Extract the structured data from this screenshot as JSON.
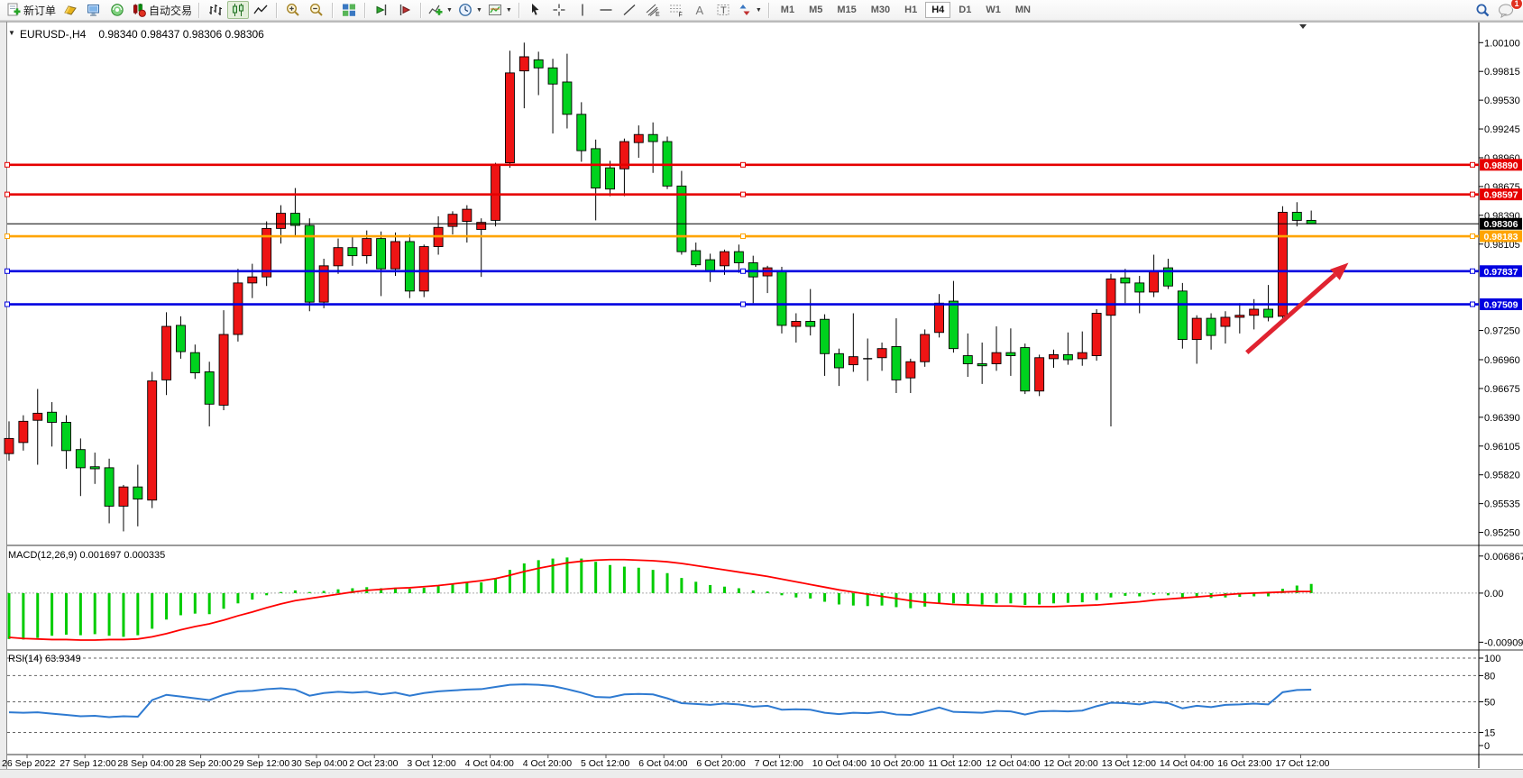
{
  "toolbar": {
    "new_order_label": "新订单",
    "auto_trading_label": "自动交易",
    "timeframes": [
      "M1",
      "M5",
      "M15",
      "M30",
      "H1",
      "H4",
      "D1",
      "W1",
      "MN"
    ],
    "active_timeframe": "H4",
    "notification_count": "1"
  },
  "chart_data": [
    {
      "type": "candlestick",
      "title_symbol": "EURUSD-,H4",
      "title_values": "0.98340 0.98437 0.98306 0.98306",
      "up_color": "#ee1414",
      "down_color": "#00d21e",
      "ylim": [
        0.9513,
        1.0029
      ],
      "y_ticks": [
        "1.00100",
        "0.99815",
        "0.99530",
        "0.99245",
        "0.98960",
        "0.98675",
        "0.98390",
        "0.98105",
        "0.97250",
        "0.96960",
        "0.96675",
        "0.96390",
        "0.96105",
        "0.95820",
        "0.95535",
        "0.95250"
      ],
      "h_lines": [
        {
          "price": 0.9889,
          "label": "0.98890",
          "color": "#e60000"
        },
        {
          "price": 0.98597,
          "label": "0.98597",
          "color": "#e60000"
        },
        {
          "price": 0.98183,
          "label": "0.98183",
          "color": "#ffa400"
        },
        {
          "price": 0.97837,
          "label": "0.97837",
          "color": "#0000e0"
        },
        {
          "price": 0.97509,
          "label": "0.97509",
          "color": "#0000e0"
        }
      ],
      "current_price": {
        "price": 0.98306,
        "label": "0.98306",
        "color": "#000000"
      },
      "arrow": {
        "x1_index": 86.5,
        "price1": 0.9703,
        "x2_index": 93.6,
        "price2": 0.9792,
        "color": "#e02330"
      },
      "time_labels": [
        "26 Sep 2022",
        "27 Sep 12:00",
        "28 Sep 04:00",
        "28 Sep 20:00",
        "29 Sep 12:00",
        "30 Sep 04:00",
        "2 Oct 23:00",
        "3 Oct 12:00",
        "4 Oct 04:00",
        "4 Oct 20:00",
        "5 Oct 12:00",
        "6 Oct 04:00",
        "6 Oct 20:00",
        "7 Oct 12:00",
        "10 Oct 04:00",
        "10 Oct 20:00",
        "11 Oct 12:00",
        "12 Oct 04:00",
        "12 Oct 20:00",
        "13 Oct 12:00",
        "14 Oct 04:00",
        "16 Oct 23:00",
        "17 Oct 12:00"
      ],
      "candles": [
        [
          0.9603,
          0.9635,
          0.9596,
          0.9618
        ],
        [
          0.9614,
          0.9641,
          0.9606,
          0.9635
        ],
        [
          0.9636,
          0.9667,
          0.9592,
          0.9643
        ],
        [
          0.9644,
          0.9654,
          0.961,
          0.9634
        ],
        [
          0.9634,
          0.9641,
          0.9588,
          0.9606
        ],
        [
          0.9607,
          0.9618,
          0.9561,
          0.9589
        ],
        [
          0.959,
          0.9604,
          0.9573,
          0.9588
        ],
        [
          0.9589,
          0.9598,
          0.9534,
          0.9551
        ],
        [
          0.9551,
          0.9572,
          0.9526,
          0.957
        ],
        [
          0.957,
          0.9592,
          0.9531,
          0.9558
        ],
        [
          0.9557,
          0.9684,
          0.9549,
          0.9675
        ],
        [
          0.9676,
          0.9743,
          0.9661,
          0.9729
        ],
        [
          0.973,
          0.9739,
          0.9697,
          0.9704
        ],
        [
          0.9703,
          0.9711,
          0.9677,
          0.9683
        ],
        [
          0.9684,
          0.9694,
          0.963,
          0.9652
        ],
        [
          0.9651,
          0.9745,
          0.9646,
          0.9721
        ],
        [
          0.9721,
          0.9786,
          0.9714,
          0.9772
        ],
        [
          0.9772,
          0.9791,
          0.9757,
          0.9778
        ],
        [
          0.9778,
          0.9833,
          0.9769,
          0.9826
        ],
        [
          0.9826,
          0.9849,
          0.9811,
          0.9841
        ],
        [
          0.9841,
          0.9866,
          0.9819,
          0.9829
        ],
        [
          0.9829,
          0.9836,
          0.9744,
          0.9753
        ],
        [
          0.9753,
          0.9796,
          0.9747,
          0.9789
        ],
        [
          0.9789,
          0.9816,
          0.9781,
          0.9807
        ],
        [
          0.9807,
          0.9819,
          0.9789,
          0.9799
        ],
        [
          0.9799,
          0.9824,
          0.9791,
          0.9816
        ],
        [
          0.9816,
          0.9823,
          0.9759,
          0.9786
        ],
        [
          0.9786,
          0.9822,
          0.9779,
          0.9813
        ],
        [
          0.9813,
          0.982,
          0.9757,
          0.9764
        ],
        [
          0.9764,
          0.981,
          0.9758,
          0.9808
        ],
        [
          0.9808,
          0.9838,
          0.98,
          0.9827
        ],
        [
          0.9828,
          0.9843,
          0.982,
          0.984
        ],
        [
          0.9833,
          0.9849,
          0.9812,
          0.9845
        ],
        [
          0.9825,
          0.9836,
          0.9778,
          0.9832
        ],
        [
          0.9834,
          0.9891,
          0.9828,
          0.9889
        ],
        [
          0.9891,
          1.0002,
          0.9886,
          0.998
        ],
        [
          0.9982,
          1.001,
          0.9945,
          0.9996
        ],
        [
          0.9993,
          1.0001,
          0.9958,
          0.9985
        ],
        [
          0.9985,
          0.9994,
          0.992,
          0.9969
        ],
        [
          0.9971,
          0.9999,
          0.9925,
          0.9939
        ],
        [
          0.9939,
          0.9951,
          0.9892,
          0.9903
        ],
        [
          0.9905,
          0.9914,
          0.9834,
          0.9866
        ],
        [
          0.9886,
          0.9893,
          0.9858,
          0.9865
        ],
        [
          0.9885,
          0.9915,
          0.9858,
          0.9912
        ],
        [
          0.9911,
          0.9928,
          0.9896,
          0.9919
        ],
        [
          0.9919,
          0.9931,
          0.9881,
          0.9912
        ],
        [
          0.9912,
          0.9917,
          0.9865,
          0.9868
        ],
        [
          0.9868,
          0.9883,
          0.98,
          0.9803
        ],
        [
          0.9804,
          0.9812,
          0.9788,
          0.979
        ],
        [
          0.9795,
          0.9801,
          0.9773,
          0.9784
        ],
        [
          0.9789,
          0.9805,
          0.978,
          0.9803
        ],
        [
          0.9803,
          0.981,
          0.9782,
          0.9792
        ],
        [
          0.9792,
          0.9799,
          0.9752,
          0.9778
        ],
        [
          0.9779,
          0.9789,
          0.9762,
          0.9787
        ],
        [
          0.9784,
          0.9788,
          0.9722,
          0.973
        ],
        [
          0.9729,
          0.9742,
          0.9713,
          0.9734
        ],
        [
          0.9734,
          0.9766,
          0.972,
          0.9729
        ],
        [
          0.9736,
          0.9741,
          0.968,
          0.9702
        ],
        [
          0.9702,
          0.9707,
          0.967,
          0.9688
        ],
        [
          0.9691,
          0.9742,
          0.9684,
          0.9699
        ],
        [
          0.9697,
          0.9717,
          0.9675,
          0.9697
        ],
        [
          0.9698,
          0.9713,
          0.9685,
          0.9707
        ],
        [
          0.9709,
          0.9737,
          0.9663,
          0.9676
        ],
        [
          0.9678,
          0.9697,
          0.9663,
          0.9694
        ],
        [
          0.9694,
          0.9726,
          0.9689,
          0.9721
        ],
        [
          0.9723,
          0.9761,
          0.9718,
          0.9752
        ],
        [
          0.9754,
          0.9774,
          0.9703,
          0.9707
        ],
        [
          0.97,
          0.9722,
          0.9679,
          0.9692
        ],
        [
          0.9692,
          0.9713,
          0.9672,
          0.969
        ],
        [
          0.9692,
          0.9729,
          0.9685,
          0.9703
        ],
        [
          0.9703,
          0.9727,
          0.968,
          0.97
        ],
        [
          0.9708,
          0.9712,
          0.9662,
          0.9665
        ],
        [
          0.9665,
          0.9701,
          0.966,
          0.9698
        ],
        [
          0.9697,
          0.9706,
          0.9688,
          0.9701
        ],
        [
          0.9701,
          0.9723,
          0.9691,
          0.9696
        ],
        [
          0.9697,
          0.9724,
          0.969,
          0.9703
        ],
        [
          0.97,
          0.9746,
          0.9695,
          0.9742
        ],
        [
          0.974,
          0.9781,
          0.963,
          0.9776
        ],
        [
          0.9777,
          0.9786,
          0.9752,
          0.9772
        ],
        [
          0.9772,
          0.9779,
          0.9742,
          0.9763
        ],
        [
          0.9763,
          0.98,
          0.9758,
          0.9784
        ],
        [
          0.9787,
          0.9796,
          0.9766,
          0.9769
        ],
        [
          0.9764,
          0.9772,
          0.9707,
          0.9716
        ],
        [
          0.9716,
          0.974,
          0.9692,
          0.9737
        ],
        [
          0.9737,
          0.9742,
          0.9706,
          0.972
        ],
        [
          0.9729,
          0.9744,
          0.9712,
          0.9738
        ],
        [
          0.9738,
          0.9752,
          0.9722,
          0.974
        ],
        [
          0.974,
          0.9756,
          0.9726,
          0.9746
        ],
        [
          0.9746,
          0.977,
          0.9734,
          0.9738
        ],
        [
          0.9739,
          0.9848,
          0.9733,
          0.9842
        ],
        [
          0.9842,
          0.9852,
          0.9828,
          0.9834
        ],
        [
          0.9834,
          0.98437,
          0.98306,
          0.98306
        ]
      ]
    },
    {
      "type": "bar",
      "label": "MACD(12,26,9) 0.001697 0.000335",
      "indicator": "MACD",
      "params": "12,26,9",
      "macd_value": "0.001697",
      "signal_value": "0.000335",
      "y_ticks": [
        "0.006867",
        "0.00",
        "-0.009094"
      ],
      "ylim": [
        -0.0102,
        0.0085
      ],
      "hist_color": "#00cc00",
      "signal_color": "#ff0000",
      "histogram": [
        -0.0085,
        -0.0086,
        -0.0083,
        -0.0079,
        -0.0077,
        -0.0078,
        -0.0076,
        -0.0079,
        -0.0081,
        -0.0078,
        -0.0066,
        -0.0049,
        -0.0041,
        -0.0038,
        -0.0039,
        -0.0029,
        -0.0019,
        -0.0012,
        -0.0004,
        0.0002,
        0.0005,
        0.0002,
        0.0004,
        0.0007,
        0.0009,
        0.0011,
        0.0009,
        0.001,
        0.0008,
        0.001,
        0.0013,
        0.0016,
        0.0019,
        0.002,
        0.0026,
        0.0043,
        0.0055,
        0.0061,
        0.0064,
        0.0066,
        0.0064,
        0.0058,
        0.0052,
        0.0049,
        0.0047,
        0.0043,
        0.0037,
        0.0028,
        0.0021,
        0.0015,
        0.0012,
        0.0009,
        0.0005,
        0.0003,
        -0.0004,
        -0.0008,
        -0.001,
        -0.0016,
        -0.0021,
        -0.0023,
        -0.0024,
        -0.0023,
        -0.0026,
        -0.0028,
        -0.0025,
        -0.002,
        -0.0019,
        -0.002,
        -0.0021,
        -0.0019,
        -0.0019,
        -0.0022,
        -0.0021,
        -0.0019,
        -0.0018,
        -0.0017,
        -0.0013,
        -0.0008,
        -0.0005,
        -0.0006,
        -0.0003,
        -0.0004,
        -0.0009,
        -0.0008,
        -0.0009,
        -0.0008,
        -0.0007,
        -0.0006,
        -0.0006,
        0.0008,
        0.0014,
        0.0017
      ],
      "signal": [
        -0.0082,
        -0.0084,
        -0.0085,
        -0.0086,
        -0.0086,
        -0.0087,
        -0.0087,
        -0.0086,
        -0.0086,
        -0.0085,
        -0.0081,
        -0.0075,
        -0.0068,
        -0.0062,
        -0.0057,
        -0.005,
        -0.0042,
        -0.0035,
        -0.0027,
        -0.002,
        -0.0014,
        -0.001,
        -0.0006,
        -0.0002,
        0.0002,
        0.0005,
        0.0007,
        0.0009,
        0.001,
        0.0012,
        0.0014,
        0.0017,
        0.002,
        0.0023,
        0.0027,
        0.0033,
        0.004,
        0.0046,
        0.0051,
        0.0056,
        0.0059,
        0.0061,
        0.0062,
        0.0062,
        0.0061,
        0.006,
        0.0058,
        0.0055,
        0.0051,
        0.0047,
        0.0043,
        0.0039,
        0.0035,
        0.0031,
        0.0026,
        0.0021,
        0.0016,
        0.0011,
        0.0006,
        0.0002,
        -0.0002,
        -0.0006,
        -0.001,
        -0.0014,
        -0.0017,
        -0.0019,
        -0.0021,
        -0.0022,
        -0.0023,
        -0.0024,
        -0.0024,
        -0.0025,
        -0.0025,
        -0.0025,
        -0.0024,
        -0.0023,
        -0.0022,
        -0.002,
        -0.0018,
        -0.0016,
        -0.0013,
        -0.0011,
        -0.0009,
        -0.0007,
        -0.0005,
        -0.0003,
        -0.0001,
        0.0,
        0.0001,
        0.0002,
        0.0003,
        0.0003
      ]
    },
    {
      "type": "line",
      "label": "RSI(14) 63.9349",
      "indicator": "RSI",
      "params": "14",
      "value": "63.9349",
      "levels": [
        100,
        80,
        50,
        15
      ],
      "y_ticks": [
        "100",
        "80",
        "50",
        "15",
        "0"
      ],
      "ylim": [
        0,
        100
      ],
      "color": "#2e7ad1",
      "values": [
        38,
        37.5,
        38,
        36.5,
        35,
        33.5,
        34,
        32.5,
        33.5,
        33,
        52,
        58,
        56,
        54,
        52,
        58,
        62,
        62.5,
        64.5,
        65.5,
        64,
        57,
        60,
        61.5,
        60.5,
        61.5,
        58.5,
        60.5,
        57,
        60,
        62,
        63,
        64,
        64.5,
        67,
        69.5,
        70,
        69.5,
        68,
        64.5,
        60.5,
        55.5,
        55,
        58.5,
        59,
        58.5,
        54,
        48.5,
        47.5,
        46.5,
        48,
        47,
        44.5,
        45.5,
        41,
        41.5,
        41,
        37.5,
        36,
        37.5,
        37,
        38.5,
        35.5,
        35,
        39,
        43.5,
        38.5,
        38,
        37.5,
        39.5,
        39,
        35.5,
        39,
        39.5,
        39,
        40,
        45,
        49,
        48.5,
        47,
        50,
        48.5,
        42.5,
        45.5,
        44,
        46.5,
        47,
        48,
        47,
        61,
        63.5,
        63.9
      ]
    }
  ]
}
